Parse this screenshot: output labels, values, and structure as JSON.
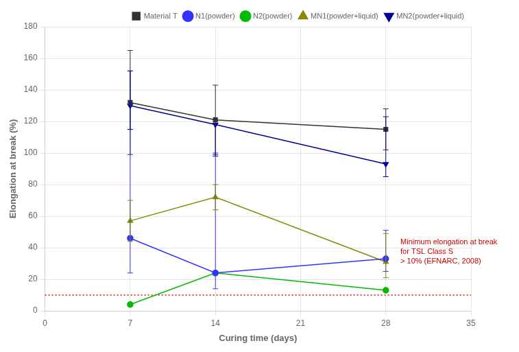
{
  "chart_data": {
    "type": "line",
    "x": [
      7,
      14,
      28
    ],
    "series": [
      {
        "name": "Material T",
        "color": "#333333",
        "marker": "square",
        "line_style": "solid",
        "values": [
          132,
          121,
          115
        ],
        "error_upper": [
          33,
          22,
          13
        ],
        "error_lower": [
          33,
          22,
          13
        ]
      },
      {
        "name": "N1(powder)",
        "color": "#3333FF",
        "marker": "circle",
        "line_style": "solid",
        "values": [
          46,
          24,
          33
        ],
        "error_upper": [
          106,
          76,
          18
        ],
        "error_lower": [
          22,
          10,
          8
        ]
      },
      {
        "name": "N2(powder)",
        "color": "#00BB00",
        "marker": "circle",
        "line_style": "solid",
        "values": [
          4,
          24,
          13
        ],
        "error_upper": [
          0,
          0,
          0
        ],
        "error_lower": [
          0,
          0,
          0
        ]
      },
      {
        "name": "MN1(powder+liquid)",
        "color": "#888800",
        "marker": "triangle_up",
        "line_style": "solid",
        "values": [
          57,
          72,
          31
        ],
        "error_upper": [
          13,
          8,
          18
        ],
        "error_lower": [
          13,
          8,
          10
        ]
      },
      {
        "name": "MN2(powder+liquid)",
        "color": "#000099",
        "marker": "triangle_down",
        "line_style": "solid",
        "values": [
          130,
          118,
          93
        ],
        "error_upper": [
          22,
          0,
          30
        ],
        "error_lower": [
          15,
          20,
          8
        ]
      }
    ],
    "xlabel": "Curing time (days)",
    "ylabel": "Elongation at break (%)",
    "xlim": [
      0,
      35
    ],
    "ylim": [
      0,
      180
    ],
    "xticks": [
      0,
      7,
      14,
      21,
      28,
      35
    ],
    "yticks": [
      0,
      20,
      40,
      60,
      80,
      100,
      120,
      140,
      160,
      180
    ],
    "grid": true,
    "legend": "upper right",
    "hlines": [
      {
        "y": 10,
        "color": "#FF0000",
        "line_style": "dotted"
      }
    ],
    "annotations": [
      {
        "text": "Minimum elongation at break\nfor TSL Class S\n> 10% (EFNARC, 2008)",
        "x": 29.2,
        "y": 46,
        "color": "#CC0000"
      }
    ]
  }
}
